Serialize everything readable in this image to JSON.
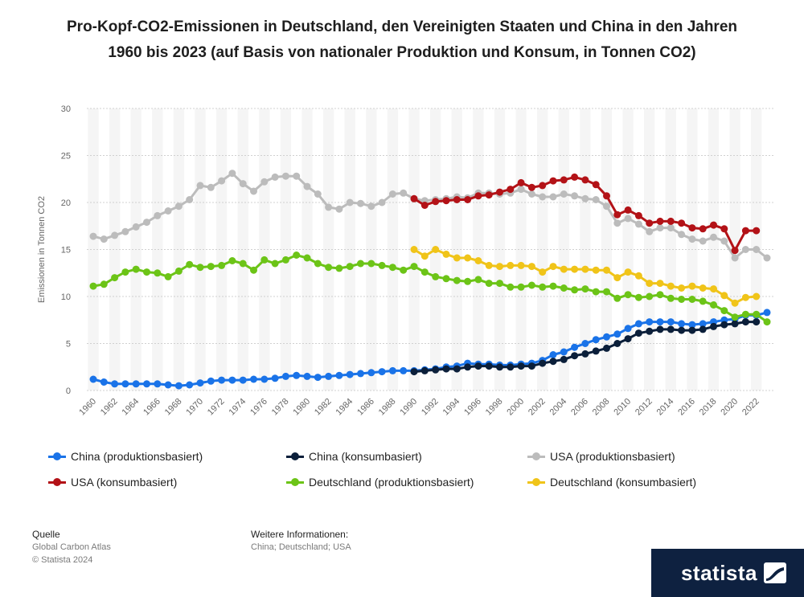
{
  "title": "Pro-Kopf-CO2-Emissionen in Deutschland, den Vereinigten Staaten und China in den Jahren 1960 bis 2023 (auf Basis von nationaler Produktion und Konsum, in Tonnen CO2)",
  "chart_data": {
    "type": "line",
    "title": "Pro-Kopf-CO2-Emissionen in Deutschland, den Vereinigten Staaten und China in den Jahren 1960 bis 2023 (auf Basis von nationaler Produktion und Konsum, in Tonnen CO2)",
    "xlabel": "",
    "ylabel": "Emissionen in Tonnen CO2",
    "ylim": [
      0,
      30
    ],
    "yticks": [
      0,
      5,
      10,
      15,
      20,
      25,
      30
    ],
    "xlim": [
      1960,
      2023
    ],
    "xtick_labels": [
      "1960",
      "1962",
      "1964",
      "1966",
      "1968",
      "1970",
      "1972",
      "1974",
      "1976",
      "1978",
      "1980",
      "1982",
      "1984",
      "1986",
      "1988",
      "1990",
      "1992",
      "1994",
      "1996",
      "1998",
      "2000",
      "2002",
      "2004",
      "2006",
      "2008",
      "2010",
      "2012",
      "2014",
      "2016",
      "2018",
      "2020",
      "2022"
    ],
    "grid": true,
    "legend_position": "bottom",
    "series": [
      {
        "name": "China (produktionsbasiert)",
        "color": "#1a73e8",
        "start": 1960,
        "values": [
          1.2,
          0.9,
          0.7,
          0.7,
          0.7,
          0.7,
          0.7,
          0.6,
          0.5,
          0.6,
          0.8,
          1.0,
          1.1,
          1.1,
          1.1,
          1.2,
          1.2,
          1.3,
          1.5,
          1.6,
          1.5,
          1.4,
          1.5,
          1.6,
          1.7,
          1.8,
          1.9,
          2.0,
          2.1,
          2.1,
          2.1,
          2.2,
          2.3,
          2.5,
          2.6,
          2.9,
          2.8,
          2.8,
          2.7,
          2.7,
          2.8,
          2.9,
          3.2,
          3.8,
          4.1,
          4.6,
          5.0,
          5.4,
          5.7,
          6.0,
          6.6,
          7.1,
          7.3,
          7.3,
          7.3,
          7.1,
          7.0,
          7.1,
          7.3,
          7.5,
          7.6,
          8.0,
          8.0,
          8.3
        ]
      },
      {
        "name": "China (konsumbasiert)",
        "color": "#0b1f3a",
        "start": 1990,
        "values": [
          2.0,
          2.1,
          2.2,
          2.3,
          2.3,
          2.5,
          2.6,
          2.6,
          2.5,
          2.5,
          2.6,
          2.6,
          2.9,
          3.1,
          3.3,
          3.7,
          3.9,
          4.2,
          4.5,
          5.0,
          5.5,
          6.1,
          6.3,
          6.5,
          6.5,
          6.4,
          6.4,
          6.5,
          6.8,
          7.0,
          7.1,
          7.3,
          7.3
        ]
      },
      {
        "name": "USA (produktionsbasiert)",
        "color": "#bcbcbc",
        "start": 1960,
        "values": [
          16.4,
          16.1,
          16.5,
          16.9,
          17.4,
          17.9,
          18.6,
          19.1,
          19.6,
          20.3,
          21.8,
          21.6,
          22.3,
          23.1,
          22.0,
          21.2,
          22.2,
          22.7,
          22.8,
          22.8,
          21.7,
          20.9,
          19.5,
          19.3,
          20.0,
          19.9,
          19.6,
          20.0,
          20.9,
          21.0,
          20.4,
          20.2,
          20.3,
          20.4,
          20.6,
          20.5,
          21.0,
          21.0,
          20.9,
          21.0,
          21.4,
          20.9,
          20.6,
          20.6,
          20.9,
          20.7,
          20.4,
          20.3,
          19.6,
          17.8,
          18.3,
          17.7,
          16.9,
          17.3,
          17.3,
          16.6,
          16.1,
          15.9,
          16.3,
          15.9,
          14.1,
          15.0,
          15.0,
          14.1
        ]
      },
      {
        "name": "USA (konsumbasiert)",
        "color": "#b31217",
        "start": 1990,
        "values": [
          20.4,
          19.7,
          20.1,
          20.2,
          20.3,
          20.3,
          20.7,
          20.8,
          21.1,
          21.4,
          22.1,
          21.6,
          21.8,
          22.3,
          22.4,
          22.7,
          22.4,
          21.9,
          20.7,
          18.7,
          19.2,
          18.6,
          17.8,
          18.0,
          18.0,
          17.8,
          17.3,
          17.2,
          17.6,
          17.2,
          14.9,
          17.0,
          17.0
        ]
      },
      {
        "name": "Deutschland (produktionsbasiert)",
        "color": "#6cc417",
        "start": 1960,
        "values": [
          11.1,
          11.3,
          12.0,
          12.6,
          12.9,
          12.6,
          12.5,
          12.1,
          12.7,
          13.4,
          13.1,
          13.2,
          13.3,
          13.8,
          13.5,
          12.8,
          13.9,
          13.5,
          13.9,
          14.4,
          14.1,
          13.5,
          13.1,
          13.0,
          13.2,
          13.5,
          13.5,
          13.3,
          13.1,
          12.8,
          13.2,
          12.6,
          12.1,
          11.9,
          11.7,
          11.6,
          11.8,
          11.4,
          11.4,
          11.0,
          11.0,
          11.2,
          11.0,
          11.1,
          10.9,
          10.7,
          10.8,
          10.5,
          10.5,
          9.8,
          10.2,
          9.9,
          10.0,
          10.2,
          9.8,
          9.7,
          9.7,
          9.5,
          9.1,
          8.5,
          7.8,
          8.1,
          8.1,
          7.3
        ]
      },
      {
        "name": "Deutschland (konsumbasiert)",
        "color": "#f0c419",
        "start": 1990,
        "values": [
          15.0,
          14.3,
          15.0,
          14.5,
          14.1,
          14.1,
          13.8,
          13.3,
          13.2,
          13.3,
          13.3,
          13.2,
          12.6,
          13.2,
          12.9,
          12.9,
          12.9,
          12.8,
          12.8,
          12.0,
          12.6,
          12.2,
          11.4,
          11.4,
          11.1,
          10.9,
          11.1,
          10.9,
          10.8,
          10.1,
          9.3,
          9.9,
          10.0
        ]
      }
    ]
  },
  "legend_rows": [
    [
      {
        "label": "China (produktionsbasiert)",
        "color": "#1a73e8"
      },
      {
        "label": "China (konsumbasiert)",
        "color": "#0b1f3a"
      },
      {
        "label": "USA (produktionsbasiert)",
        "color": "#bcbcbc"
      }
    ],
    [
      {
        "label": "USA (konsumbasiert)",
        "color": "#b31217"
      },
      {
        "label": "Deutschland (produktionsbasiert)",
        "color": "#6cc417"
      },
      {
        "label": "Deutschland (konsumbasiert)",
        "color": "#f0c419"
      }
    ]
  ],
  "footer": {
    "source_heading": "Quelle",
    "source_lines": [
      "Global Carbon Atlas",
      "© Statista 2024"
    ],
    "more_heading": "Weitere Informationen:",
    "more_text": "China; Deutschland; USA"
  },
  "brand": {
    "name": "statista",
    "background": "#0e2140"
  }
}
